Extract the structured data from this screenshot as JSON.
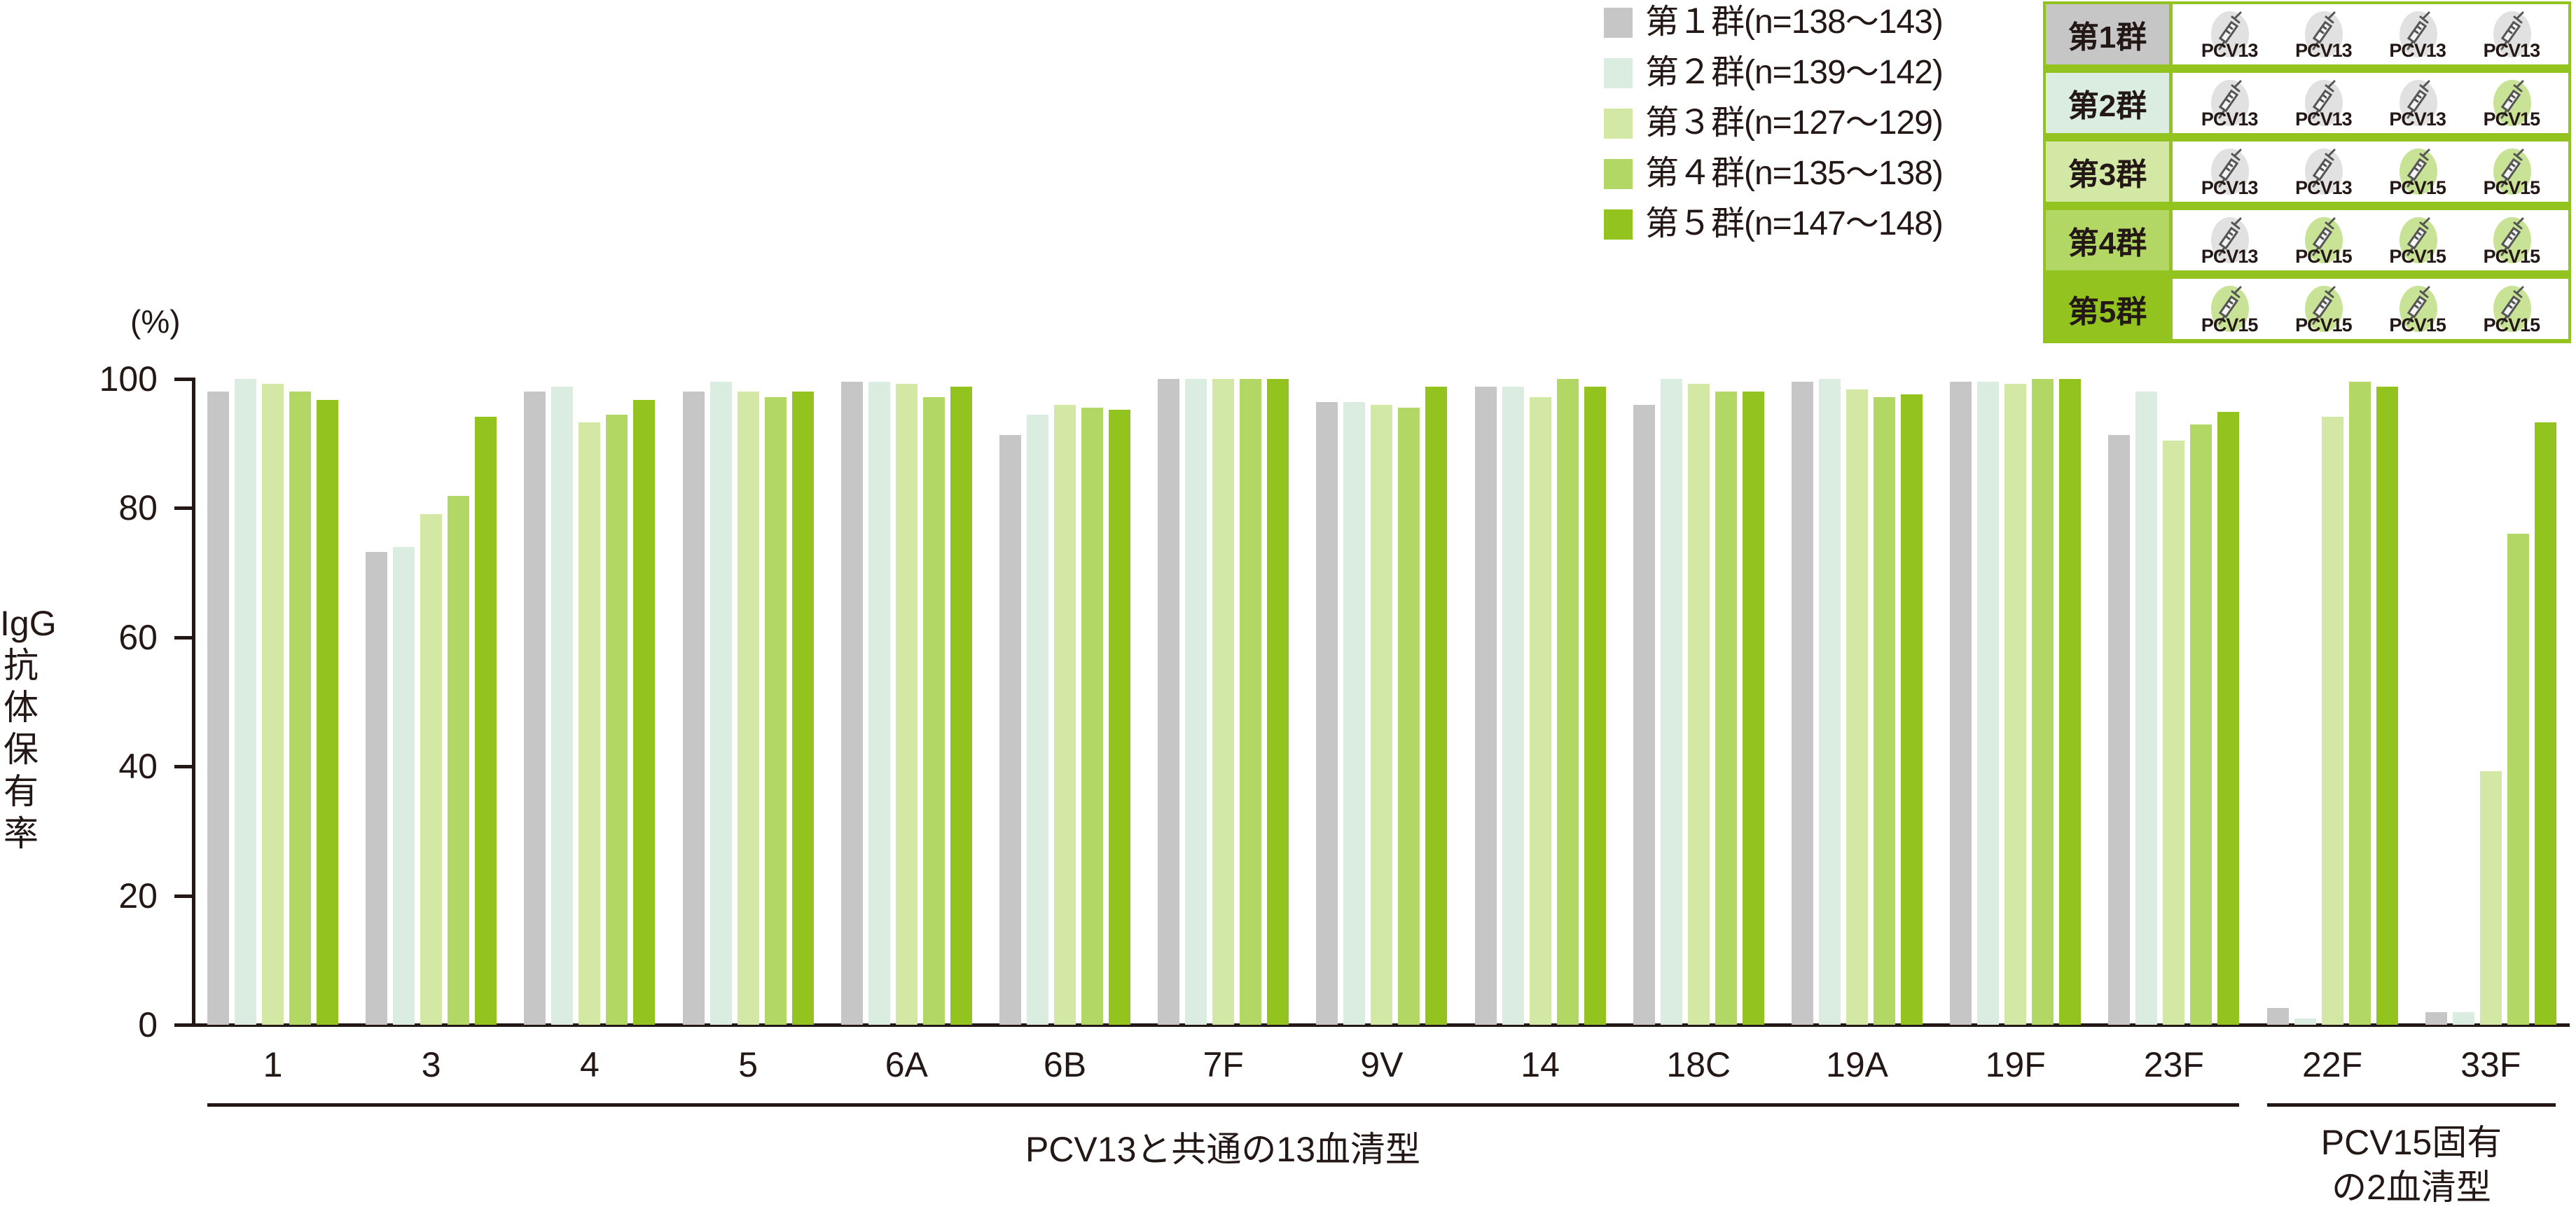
{
  "legend": [
    {
      "label": "第１群(n=138〜143)",
      "color": "#c6c6c6"
    },
    {
      "label": "第２群(n=139〜142)",
      "color": "#daede0"
    },
    {
      "label": "第３群(n=127〜129)",
      "color": "#d4e8a6"
    },
    {
      "label": "第４群(n=135〜138)",
      "color": "#b3d764"
    },
    {
      "label": "第５群(n=147〜148)",
      "color": "#93c31f"
    }
  ],
  "schedule": {
    "border_color": "#93c31f",
    "pcv13_circle_color": "#e1e1e1",
    "pcv15_circle_color": "#c9e396",
    "rows": [
      {
        "label": "第1群",
        "bg": "#c6c6c6",
        "doses": [
          "PCV13",
          "PCV13",
          "PCV13",
          "PCV13"
        ]
      },
      {
        "label": "第2群",
        "bg": "#daede0",
        "doses": [
          "PCV13",
          "PCV13",
          "PCV13",
          "PCV15"
        ]
      },
      {
        "label": "第3群",
        "bg": "#d4e8a6",
        "doses": [
          "PCV13",
          "PCV13",
          "PCV15",
          "PCV15"
        ]
      },
      {
        "label": "第4群",
        "bg": "#b3d764",
        "doses": [
          "PCV13",
          "PCV15",
          "PCV15",
          "PCV15"
        ]
      },
      {
        "label": "第5群",
        "bg": "#93c31f",
        "doses": [
          "PCV15",
          "PCV15",
          "PCV15",
          "PCV15"
        ]
      }
    ]
  },
  "axis": {
    "y_unit": "(%)",
    "y_title": [
      "IgG",
      "抗",
      "体",
      "保",
      "有",
      "率"
    ],
    "y_ticks": [
      "100",
      "80",
      "60",
      "40",
      "20",
      "0"
    ]
  },
  "groups": {
    "common": "PCV13と共通の13血清型",
    "unique_line1": "PCV15固有",
    "unique_line2": "の2血清型"
  },
  "chart_data": {
    "type": "bar",
    "title": "",
    "xlabel": "",
    "ylabel": "IgG抗体保有率 (%)",
    "ylim": [
      0,
      100
    ],
    "yticks": [
      0,
      20,
      40,
      60,
      80,
      100
    ],
    "grid": false,
    "legend_position": "top-right",
    "categories": [
      "1",
      "3",
      "4",
      "5",
      "6A",
      "6B",
      "7F",
      "9V",
      "14",
      "18C",
      "19A",
      "19F",
      "23F",
      "22F",
      "33F"
    ],
    "category_groups": [
      {
        "label": "PCV13と共通の13血清型",
        "categories": [
          "1",
          "3",
          "4",
          "5",
          "6A",
          "6B",
          "7F",
          "9V",
          "14",
          "18C",
          "19A",
          "19F",
          "23F"
        ]
      },
      {
        "label": "PCV15固有の2血清型",
        "categories": [
          "22F",
          "33F"
        ]
      }
    ],
    "series": [
      {
        "name": "第１群(n=138〜143)",
        "color": "#c6c6c6",
        "values": [
          98.0,
          73.2,
          98.0,
          98.0,
          99.6,
          91.3,
          100,
          96.4,
          98.8,
          96.0,
          99.6,
          99.6,
          91.3,
          2.6,
          1.9
        ]
      },
      {
        "name": "第２群(n=139〜142)",
        "color": "#daede0",
        "values": [
          100,
          74.0,
          98.8,
          99.6,
          99.6,
          94.5,
          100,
          96.4,
          98.8,
          100,
          100,
          99.6,
          98.0,
          1.0,
          1.9
        ]
      },
      {
        "name": "第３群(n=127〜129)",
        "color": "#d4e8a6",
        "values": [
          99.2,
          79.1,
          93.3,
          98.0,
          99.2,
          96.0,
          100,
          96.0,
          97.2,
          99.2,
          98.4,
          99.2,
          90.5,
          94.1,
          39.3
        ]
      },
      {
        "name": "第４群(n=135〜138)",
        "color": "#b3d764",
        "values": [
          98.0,
          81.9,
          94.5,
          97.2,
          97.2,
          95.6,
          100,
          95.6,
          100,
          98.0,
          97.2,
          100,
          92.9,
          99.6,
          76.0
        ]
      },
      {
        "name": "第５群(n=147〜148)",
        "color": "#93c31f",
        "values": [
          96.8,
          94.1,
          96.8,
          98.0,
          98.8,
          95.2,
          100,
          98.8,
          98.8,
          98.0,
          97.6,
          100,
          94.9,
          98.8,
          93.3
        ]
      }
    ]
  }
}
